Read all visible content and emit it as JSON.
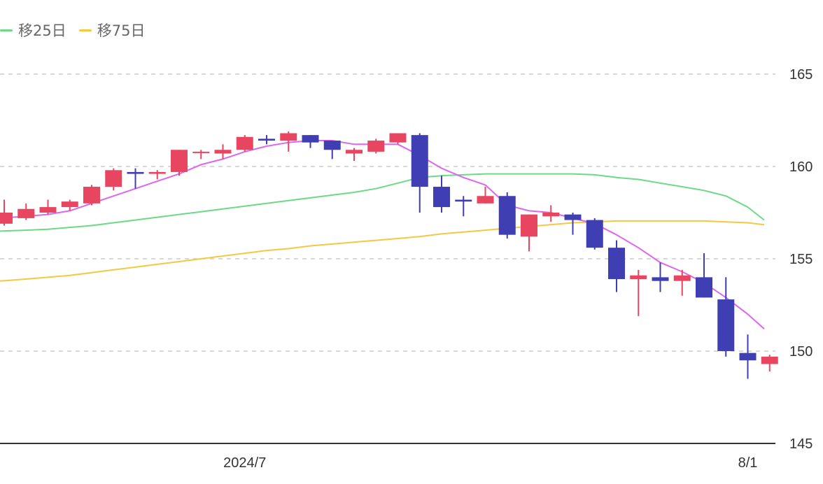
{
  "chart_data": {
    "type": "candlestick",
    "title": "",
    "xlabel": "",
    "ylabel": "",
    "ylim": [
      145,
      165
    ],
    "y_ticks": [
      145,
      150,
      155,
      160,
      165
    ],
    "x_tick_labels": [
      {
        "label": "2024/7",
        "index": 11
      },
      {
        "label": "8/1",
        "index": 34
      }
    ],
    "grid": true,
    "legend_placement": "top-left",
    "legend": [
      {
        "label": "移25日",
        "color": "#6cd986"
      },
      {
        "label": "移75日",
        "color": "#f5c842"
      }
    ],
    "colors": {
      "up": "#e84560",
      "down": "#3f3fb3",
      "ma_short": "#dd66ee",
      "ma25": "#6cd986",
      "ma75": "#f5c842",
      "grid": "#cccccc",
      "axis": "#333333"
    },
    "candles": [
      {
        "o": 156.9,
        "h": 158.2,
        "l": 156.8,
        "c": 157.5
      },
      {
        "o": 157.2,
        "h": 158.0,
        "l": 157.1,
        "c": 157.7
      },
      {
        "o": 157.5,
        "h": 158.2,
        "l": 157.4,
        "c": 157.8
      },
      {
        "o": 157.8,
        "h": 158.2,
        "l": 157.6,
        "c": 158.1
      },
      {
        "o": 158.0,
        "h": 159.0,
        "l": 157.9,
        "c": 158.9
      },
      {
        "o": 158.9,
        "h": 159.9,
        "l": 158.7,
        "c": 159.8
      },
      {
        "o": 159.7,
        "h": 159.9,
        "l": 158.8,
        "c": 159.6
      },
      {
        "o": 159.6,
        "h": 159.8,
        "l": 159.3,
        "c": 159.7
      },
      {
        "o": 159.7,
        "h": 160.9,
        "l": 159.5,
        "c": 160.9
      },
      {
        "o": 160.8,
        "h": 160.9,
        "l": 160.4,
        "c": 160.8
      },
      {
        "o": 160.7,
        "h": 161.2,
        "l": 160.4,
        "c": 160.9
      },
      {
        "o": 160.9,
        "h": 161.7,
        "l": 160.8,
        "c": 161.6
      },
      {
        "o": 161.5,
        "h": 161.7,
        "l": 161.2,
        "c": 161.4
      },
      {
        "o": 161.4,
        "h": 161.9,
        "l": 160.8,
        "c": 161.8
      },
      {
        "o": 161.7,
        "h": 161.7,
        "l": 161.0,
        "c": 161.3
      },
      {
        "o": 161.4,
        "h": 161.4,
        "l": 160.4,
        "c": 160.9
      },
      {
        "o": 160.7,
        "h": 161.0,
        "l": 160.3,
        "c": 160.9
      },
      {
        "o": 160.8,
        "h": 161.5,
        "l": 160.7,
        "c": 161.4
      },
      {
        "o": 161.3,
        "h": 161.8,
        "l": 161.2,
        "c": 161.8
      },
      {
        "o": 161.7,
        "h": 161.8,
        "l": 157.5,
        "c": 158.9
      },
      {
        "o": 158.9,
        "h": 159.5,
        "l": 157.5,
        "c": 157.8
      },
      {
        "o": 158.2,
        "h": 158.4,
        "l": 157.3,
        "c": 158.1
      },
      {
        "o": 158.0,
        "h": 158.9,
        "l": 158.0,
        "c": 158.4
      },
      {
        "o": 158.4,
        "h": 158.6,
        "l": 156.1,
        "c": 156.3
      },
      {
        "o": 156.2,
        "h": 157.4,
        "l": 155.4,
        "c": 157.4
      },
      {
        "o": 157.3,
        "h": 157.9,
        "l": 157.0,
        "c": 157.5
      },
      {
        "o": 157.4,
        "h": 157.5,
        "l": 156.3,
        "c": 157.1
      },
      {
        "o": 157.1,
        "h": 157.2,
        "l": 155.5,
        "c": 155.6
      },
      {
        "o": 155.6,
        "h": 156.0,
        "l": 153.2,
        "c": 153.9
      },
      {
        "o": 153.9,
        "h": 154.4,
        "l": 151.9,
        "c": 154.1
      },
      {
        "o": 154.0,
        "h": 154.8,
        "l": 153.2,
        "c": 153.8
      },
      {
        "o": 153.8,
        "h": 154.4,
        "l": 153.0,
        "c": 154.1
      },
      {
        "o": 154.0,
        "h": 155.3,
        "l": 152.9,
        "c": 152.9
      },
      {
        "o": 152.8,
        "h": 154.0,
        "l": 149.7,
        "c": 150.0
      },
      {
        "o": 149.9,
        "h": 150.9,
        "l": 148.5,
        "c": 149.5
      },
      {
        "o": 149.3,
        "h": 149.8,
        "l": 148.9,
        "c": 149.7
      }
    ],
    "series": [
      {
        "key": "ma_short",
        "values": [
          157.2,
          157.3,
          157.4,
          157.6,
          158.0,
          158.4,
          158.8,
          159.2,
          159.6,
          160.1,
          160.4,
          160.8,
          161.1,
          161.3,
          161.4,
          161.4,
          161.2,
          161.2,
          161.2,
          160.6,
          159.9,
          159.4,
          159.0,
          157.9,
          157.6,
          157.5,
          157.2,
          156.9,
          156.3,
          155.6,
          154.8,
          154.3,
          153.7,
          152.9,
          152.0,
          151.2
        ]
      },
      {
        "key": "ma25",
        "name": "移25日",
        "values": [
          156.5,
          156.55,
          156.6,
          156.7,
          156.8,
          156.95,
          157.1,
          157.25,
          157.4,
          157.55,
          157.7,
          157.85,
          158.0,
          158.15,
          158.3,
          158.45,
          158.6,
          158.8,
          159.1,
          159.4,
          159.5,
          159.55,
          159.6,
          159.6,
          159.6,
          159.6,
          159.6,
          159.55,
          159.4,
          159.3,
          159.1,
          158.9,
          158.7,
          158.4,
          157.8,
          157.1
        ]
      },
      {
        "key": "ma75",
        "name": "移75日",
        "values": [
          153.8,
          153.9,
          154.0,
          154.1,
          154.25,
          154.4,
          154.55,
          154.7,
          154.85,
          155.0,
          155.15,
          155.3,
          155.45,
          155.55,
          155.7,
          155.8,
          155.9,
          156.0,
          156.1,
          156.2,
          156.35,
          156.45,
          156.55,
          156.65,
          156.75,
          156.85,
          156.95,
          157.0,
          157.05,
          157.05,
          157.05,
          157.05,
          157.05,
          157.0,
          156.95,
          156.85
        ]
      }
    ]
  }
}
